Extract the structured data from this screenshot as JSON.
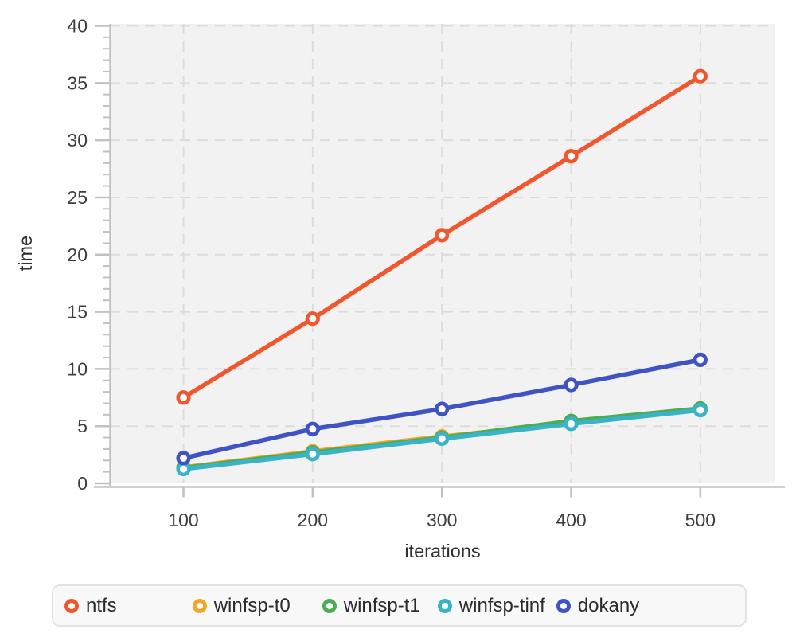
{
  "page": {
    "background": "#ffffff"
  },
  "chart_data": {
    "type": "line",
    "title": "",
    "xlabel": "iterations",
    "ylabel": "time",
    "x": [
      100,
      200,
      300,
      400,
      500
    ],
    "x_ticks": [
      "100",
      "200",
      "300",
      "400",
      "500"
    ],
    "y_ticks": [
      0,
      5,
      10,
      15,
      20,
      25,
      30,
      35,
      40
    ],
    "y_minor_tick_step": 1,
    "xlim": [
      43,
      558
    ],
    "ylim": [
      0,
      40
    ],
    "grid": "dashed",
    "legend_position": "bottom",
    "panel_background": "#f2f2f2",
    "grid_color": "#dcdcdc",
    "axis_color": "#c1c1c1",
    "tick_label_color": "#3d3d3d",
    "axis_title_color": "#2f2f2f",
    "series": [
      {
        "name": "winfsp-t0",
        "color": "#f6a525",
        "values": [
          1.4,
          2.8,
          4.1,
          5.25,
          6.45
        ]
      },
      {
        "name": "winfsp-t1",
        "color": "#4bad52",
        "values": [
          1.35,
          2.7,
          4.0,
          5.45,
          6.55
        ]
      },
      {
        "name": "winfsp-tinf",
        "color": "#3ab3c8",
        "values": [
          1.25,
          2.55,
          3.9,
          5.2,
          6.4
        ]
      },
      {
        "name": "dokany",
        "color": "#4053c4",
        "values": [
          2.2,
          4.75,
          6.5,
          8.6,
          10.8
        ]
      },
      {
        "name": "ntfs",
        "color": "#f1572e",
        "values": [
          7.5,
          14.4,
          21.7,
          28.6,
          35.6
        ]
      }
    ],
    "legend": {
      "items": [
        {
          "label": "ntfs",
          "color": "#f1572e"
        },
        {
          "label": "winfsp-t0",
          "color": "#f6a525"
        },
        {
          "label": "winfsp-t1",
          "color": "#4bad52"
        },
        {
          "label": "winfsp-tinf",
          "color": "#3ab3c8"
        },
        {
          "label": "dokany",
          "color": "#4053c4"
        }
      ]
    }
  }
}
